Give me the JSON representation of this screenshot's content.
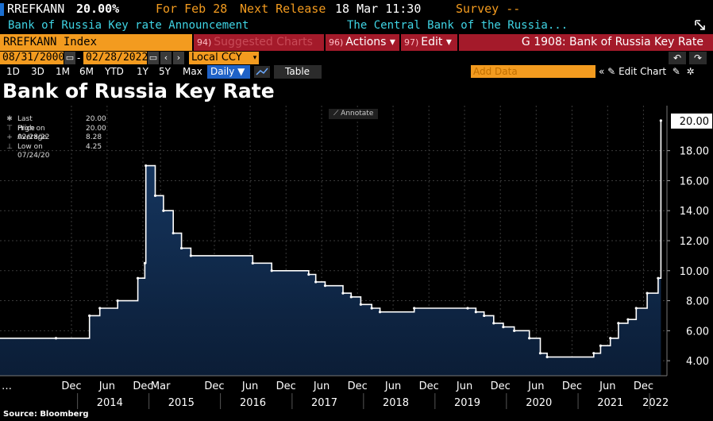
{
  "header": {
    "ticker": "RREFKANN",
    "price": "20.00%",
    "for_label": "For Feb 28",
    "next_release_label": "Next Release",
    "next_release_value": "18 Mar 11:30",
    "survey_label": "Survey --",
    "announcement": "Bank of Russia Key rate Announcement",
    "source_name": "The Central Bank of the Russia..."
  },
  "menu": {
    "index_name": "RREFKANN Index",
    "suggested_num": "94)",
    "suggested_label": "Suggested Charts",
    "actions_num": "96)",
    "actions_label": "Actions ▾",
    "edit_num": "97)",
    "edit_label": "Edit ▾",
    "chart_title": "G 1908: Bank of Russia Key Rate"
  },
  "range": {
    "start": "08/31/2000",
    "end": "02/28/2022",
    "currency": "Local CCY"
  },
  "periods": [
    "1D",
    "3D",
    "1M",
    "6M",
    "YTD",
    "1Y",
    "5Y",
    "Max"
  ],
  "toolbar": {
    "frequency": "Daily ▼",
    "table": "Table",
    "add_data_placeholder": "Add Data",
    "edit_chart": "Edit Chart"
  },
  "legend": [
    {
      "symbol": "✱",
      "label": "Last Price",
      "value": "20.00"
    },
    {
      "symbol": "⊤",
      "label": "High on 02/28/22",
      "value": "20.00"
    },
    {
      "symbol": "+",
      "label": "Average",
      "value": "8.28"
    },
    {
      "symbol": "⊥",
      "label": "Low on 07/24/20",
      "value": "4.25"
    }
  ],
  "annotate_label": "Annotate",
  "source": "Source: Bloomberg",
  "colors": {
    "area_top": "#173a66",
    "area_bottom": "#0b1d36",
    "line": "#ffffff",
    "orange": "#f39b1f",
    "red": "#a41a2a",
    "cyan": "#3fd4e4",
    "blue": "#1f62c7"
  },
  "chart_data": {
    "type": "area",
    "title": "Bank of Russia Key Rate",
    "series": [
      {
        "name": "Last Price",
        "x": [
          "2013-09-13",
          "2014-03-03",
          "2014-04-25",
          "2014-07-25",
          "2014-11-05",
          "2014-12-11",
          "2014-12-16",
          "2015-02-02",
          "2015-03-16",
          "2015-05-05",
          "2015-06-16",
          "2015-08-03",
          "2016-06-14",
          "2016-09-19",
          "2017-03-27",
          "2017-05-02",
          "2017-06-19",
          "2017-09-18",
          "2017-10-30",
          "2017-12-18",
          "2018-02-12",
          "2018-03-26",
          "2018-09-17",
          "2019-06-17",
          "2019-07-29",
          "2019-09-09",
          "2019-10-28",
          "2019-12-16",
          "2020-02-10",
          "2020-04-27",
          "2020-06-22",
          "2020-07-27",
          "2021-03-22",
          "2021-04-26",
          "2021-06-15",
          "2021-07-26",
          "2021-09-13",
          "2021-10-25",
          "2021-12-20",
          "2022-02-14",
          "2022-02-28"
        ],
        "y": [
          5.5,
          7.0,
          7.5,
          8.0,
          9.5,
          10.5,
          17.0,
          15.0,
          14.0,
          12.5,
          11.5,
          11.0,
          10.5,
          10.0,
          9.75,
          9.25,
          9.0,
          8.5,
          8.25,
          7.75,
          7.5,
          7.25,
          7.5,
          7.5,
          7.25,
          7.0,
          6.5,
          6.25,
          6.0,
          5.5,
          4.5,
          4.25,
          4.5,
          5.0,
          5.5,
          6.5,
          6.75,
          7.5,
          8.5,
          9.5,
          20.0
        ]
      }
    ],
    "x_range": [
      "2012-12-01",
      "2022-03-31"
    ],
    "ylim": [
      3.0,
      21.0
    ],
    "y_ticks": [
      4.0,
      6.0,
      8.0,
      10.0,
      12.0,
      14.0,
      16.0,
      18.0
    ],
    "y_tick_labels": [
      "4.00",
      "6.00",
      "8.00",
      "10.00",
      "12.00",
      "14.00",
      "16.00",
      "18.00"
    ],
    "last_value_label": "20.00",
    "x_ticks_top": [
      {
        "date": "2013-12-01",
        "label": "Dec"
      },
      {
        "date": "2014-06-01",
        "label": "Jun"
      },
      {
        "date": "2014-12-01",
        "label": "Dec"
      },
      {
        "date": "2015-03-01",
        "label": "Mar"
      },
      {
        "date": "2015-12-01",
        "label": "Dec"
      },
      {
        "date": "2016-06-01",
        "label": "Jun"
      },
      {
        "date": "2016-12-01",
        "label": "Dec"
      },
      {
        "date": "2017-06-01",
        "label": "Jun"
      },
      {
        "date": "2017-12-01",
        "label": "Dec"
      },
      {
        "date": "2018-06-01",
        "label": "Jun"
      },
      {
        "date": "2018-12-01",
        "label": "Dec"
      },
      {
        "date": "2019-06-01",
        "label": "Jun"
      },
      {
        "date": "2019-12-01",
        "label": "Dec"
      },
      {
        "date": "2020-06-01",
        "label": "Jun"
      },
      {
        "date": "2020-12-01",
        "label": "Dec"
      },
      {
        "date": "2021-06-01",
        "label": "Jun"
      },
      {
        "date": "2021-12-01",
        "label": "Dec"
      }
    ],
    "x_ticks_years": [
      {
        "date": "2014-06-15",
        "label": "2014"
      },
      {
        "date": "2015-06-15",
        "label": "2015"
      },
      {
        "date": "2016-06-15",
        "label": "2016"
      },
      {
        "date": "2017-06-15",
        "label": "2017"
      },
      {
        "date": "2018-06-15",
        "label": "2018"
      },
      {
        "date": "2019-06-15",
        "label": "2019"
      },
      {
        "date": "2020-06-15",
        "label": "2020"
      },
      {
        "date": "2021-06-15",
        "label": "2021"
      },
      {
        "date": "2022-02-01",
        "label": "2022"
      }
    ],
    "grid": true,
    "legend_position": "top-left"
  }
}
